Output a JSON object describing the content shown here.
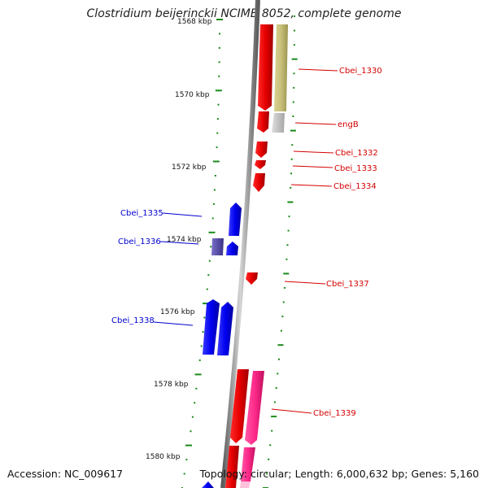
{
  "title": "Clostridium beijerinckii NCIMB 8052, complete genome",
  "footer": {
    "accession": "Accession: NC_009617",
    "topology": "Topology: circular; Length: 6,000,632 bp; Genes: 5,160"
  },
  "ticks": [
    {
      "label": "1568 kbp"
    },
    {
      "label": "1570 kbp"
    },
    {
      "label": "1572 kbp"
    },
    {
      "label": "1574 kbp"
    },
    {
      "label": "1576 kbp"
    },
    {
      "label": "1578 kbp"
    },
    {
      "label": "1580 kbp"
    }
  ],
  "genes": [
    {
      "name": "Cbei_1330",
      "strand": "reverse",
      "color": "#d40000"
    },
    {
      "name": "engB",
      "strand": "reverse",
      "color": "#d40000"
    },
    {
      "name": "Cbei_1332",
      "strand": "reverse",
      "color": "#d40000"
    },
    {
      "name": "Cbei_1333",
      "strand": "reverse",
      "color": "#d40000"
    },
    {
      "name": "Cbei_1334",
      "strand": "reverse",
      "color": "#d40000"
    },
    {
      "name": "Cbei_1335",
      "strand": "forward",
      "color": "#0000cc"
    },
    {
      "name": "Cbei_1336",
      "strand": "forward",
      "color": "#0000cc"
    },
    {
      "name": "Cbei_1337",
      "strand": "reverse",
      "color": "#d40000"
    },
    {
      "name": "Cbei_1338",
      "strand": "forward",
      "color": "#0000cc"
    },
    {
      "name": "Cbei_1339",
      "strand": "reverse",
      "color": "#d40000"
    }
  ],
  "colors": {
    "reverse_cds": "#e00000",
    "forward_cds": "#0000ee",
    "pink_feature": "#ff2a8a",
    "olive_feature": "#c8c07a",
    "grey_feature": "#c0c0c0",
    "purple_feature": "#5a4fa8",
    "tick_green": "#1a8a1a",
    "backbone": "#888888"
  }
}
